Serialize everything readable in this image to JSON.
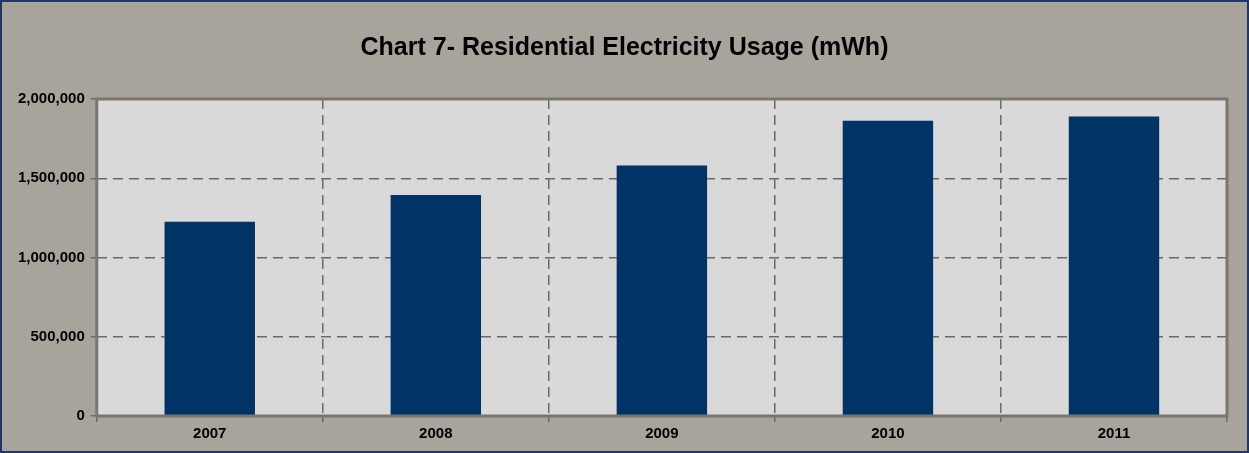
{
  "chart_data": {
    "type": "bar",
    "title": "Chart 7- Residential Electricity Usage (mWh)",
    "categories": [
      "2007",
      "2008",
      "2009",
      "2010",
      "2011"
    ],
    "values": [
      1225000,
      1395000,
      1580000,
      1863000,
      1890000
    ],
    "color": "#003366",
    "ylim": [
      0,
      2000000
    ],
    "yticks": [
      0,
      {
        "value": 500000,
        "label": "500,000"
      },
      {
        "value": 1000000,
        "label": "1,000,000"
      },
      {
        "value": 1500000,
        "label": "1,500,000"
      },
      {
        "value": 2000000,
        "label": "2,000,000"
      }
    ],
    "grid": true,
    "legend": false
  }
}
